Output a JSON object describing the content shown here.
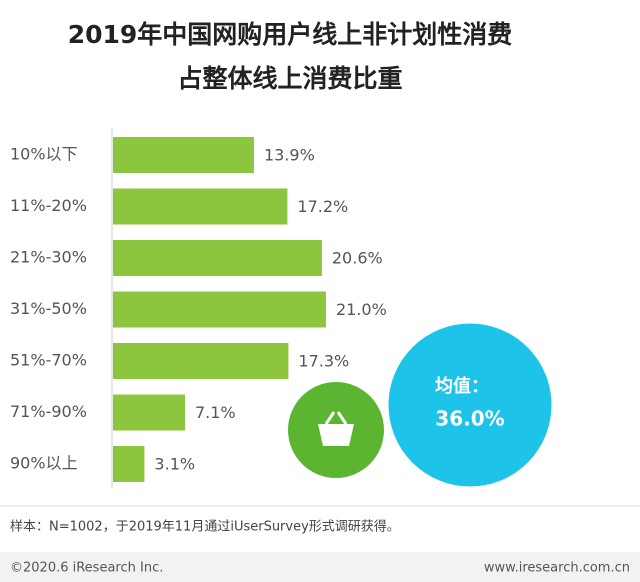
{
  "chart_data": {
    "type": "bar",
    "orientation": "horizontal",
    "title": [
      "2019年中国网购用户线上非计划性消费",
      "占整体线上消费比重"
    ],
    "categories": [
      "10%以下",
      "11%-20%",
      "21%-30%",
      "31%-50%",
      "51%-70%",
      "71%-90%",
      "90%以上"
    ],
    "values": [
      13.9,
      17.2,
      20.6,
      21.0,
      17.3,
      7.1,
      3.1
    ],
    "value_labels": [
      "13.9%",
      "17.2%",
      "20.6%",
      "21.0%",
      "17.3%",
      "7.1%",
      "3.1%"
    ],
    "color": "#8cc63e",
    "annotations": [
      "均值：",
      "36.0%"
    ],
    "note": "样本：N=1002，于2019年11月通过iUserSurvey形式调研获得。",
    "footer": [
      "©2020.6 iResearch Inc.",
      "www.iresearch.com.cn"
    ]
  }
}
